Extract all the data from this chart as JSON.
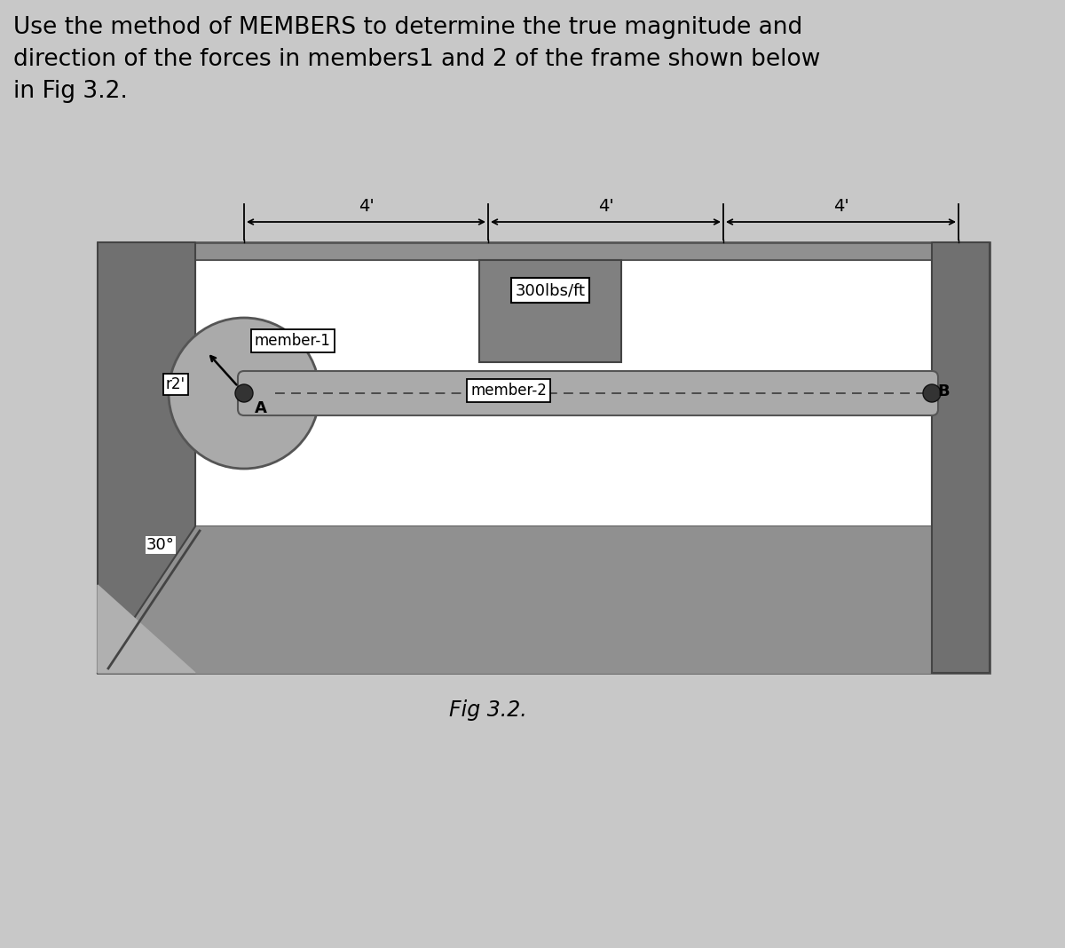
{
  "title_text": "Use the method of MEMBERS to determine the true magnitude and\ndirection of the forces in members1 and 2 of the frame shown below\nin Fig 3.2.",
  "fig_label": "Fig 3.2.",
  "page_bg": "#c8c8c8",
  "frame_outer_color": "#909090",
  "frame_inner_color": "#ffffff",
  "dark_color": "#707070",
  "rod_color": "#aaaaaa",
  "load_block_color": "#808080",
  "dim_label_4a": "4'",
  "dim_label_4b": "4'",
  "dim_label_4c": "4'",
  "load_label": "300lbs/ft",
  "member1_label": "member-1",
  "member2_label": "member-2",
  "r2_label": "r2'",
  "angle_label": "30°",
  "point_A": "A",
  "point_B": "B"
}
